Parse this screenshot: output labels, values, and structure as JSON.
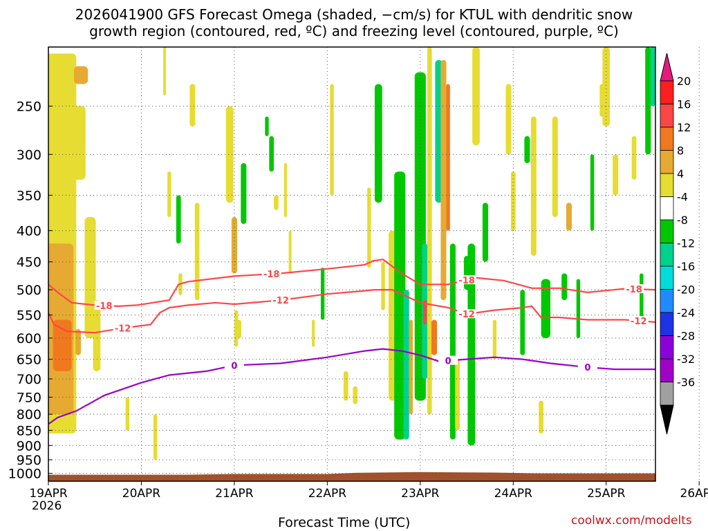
{
  "title": {
    "line1": "2026041900 GFS Forecast Omega (shaded, −cm/s) for KTUL with dendritic snow",
    "line2": "growth region (contoured, red, ºC) and freezing level (contoured, purple, ºC)"
  },
  "credit": "coolwx.com/modelts",
  "chart_data": {
    "type": "heatmap",
    "xlabel": "Forecast Time (UTC)",
    "ylabel": "",
    "x_start_year": "2026",
    "x_ticks": [
      "19APR",
      "20APR",
      "21APR",
      "22APR",
      "23APR",
      "24APR",
      "25APR",
      "26APR"
    ],
    "x_range_days": [
      0,
      6.53
    ],
    "y_axis": "pressure (hPa), log scale, inverted",
    "y_range": [
      1030,
      200
    ],
    "y_ticks": [
      250,
      300,
      350,
      400,
      450,
      500,
      550,
      600,
      650,
      700,
      750,
      800,
      850,
      900,
      950,
      1000
    ],
    "grid": true,
    "colorbar": {
      "levels": [
        20,
        16,
        12,
        8,
        4,
        -4,
        -8,
        -12,
        -16,
        -20,
        -24,
        -28,
        -32,
        -36
      ],
      "colors": [
        "#ff1e1e",
        "#fa4646",
        "#f0781e",
        "#e6aa32",
        "#e6dc32",
        "#ffffff",
        "#00c800",
        "#00d28c",
        "#00dcdc",
        "#1e8cff",
        "#1e32e6",
        "#8c00dc",
        "#a000c8",
        "#a0a0a0"
      ],
      "top_color": "#e6197d",
      "bottom_color": "#000000"
    },
    "contours": [
      {
        "name": "-18",
        "color": "#ff4646",
        "label": "-18",
        "x": [
          0,
          0.1,
          0.25,
          0.5,
          0.75,
          0.95,
          1.3,
          1.4,
          1.5,
          2.0,
          2.5,
          3.0,
          3.4,
          3.5,
          3.6,
          3.8,
          4.0,
          4.3,
          4.6,
          4.9,
          5.2,
          5.5,
          5.8,
          6.2,
          6.53
        ],
        "y": [
          490,
          505,
          525,
          530,
          532,
          530,
          520,
          490,
          485,
          475,
          470,
          462,
          455,
          448,
          446,
          470,
          490,
          490,
          478,
          483,
          497,
          497,
          505,
          498,
          500
        ]
      },
      {
        "name": "-12",
        "color": "#ff4646",
        "label": "-12",
        "x": [
          0,
          0.06,
          0.2,
          0.5,
          0.8,
          1.1,
          1.2,
          1.3,
          1.5,
          1.8,
          2.0,
          2.5,
          3.0,
          3.4,
          3.5,
          3.7,
          4.0,
          4.3,
          4.5,
          4.8,
          5.1,
          5.2,
          5.3,
          5.5,
          5.8,
          6.2,
          6.53
        ],
        "y": [
          545,
          570,
          585,
          588,
          578,
          570,
          545,
          535,
          530,
          525,
          528,
          520,
          508,
          502,
          500,
          500,
          525,
          535,
          548,
          540,
          535,
          532,
          555,
          555,
          560,
          560,
          565
        ]
      },
      {
        "name": "0",
        "color": "#9b00c8",
        "label": "0",
        "x": [
          0,
          0.1,
          0.3,
          0.6,
          1.0,
          1.3,
          1.7,
          2.0,
          2.5,
          3.0,
          3.4,
          3.6,
          3.8,
          4.0,
          4.2,
          4.5,
          4.8,
          5.1,
          5.4,
          5.8,
          6.1,
          6.53
        ],
        "y": [
          830,
          810,
          790,
          745,
          710,
          690,
          680,
          665,
          660,
          645,
          630,
          625,
          630,
          640,
          655,
          650,
          645,
          650,
          660,
          670,
          675,
          675
        ]
      }
    ]
  }
}
